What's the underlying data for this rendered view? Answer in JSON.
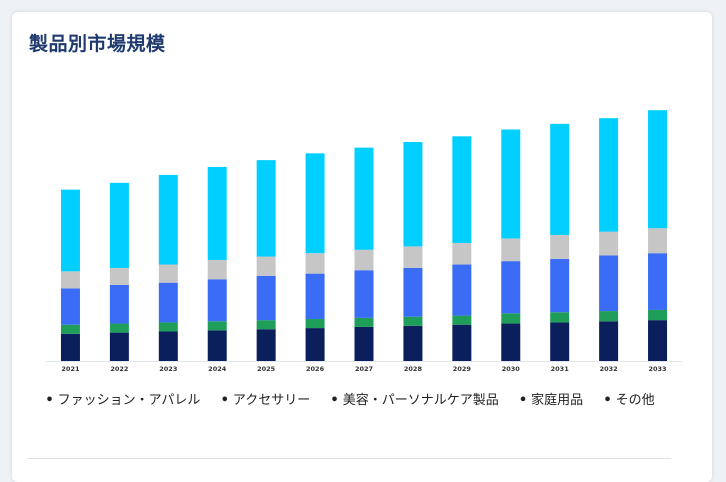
{
  "title": "製品別市場規模",
  "colors": {
    "fashion": "#00cfff",
    "accessories": "#c6c6c6",
    "beauty": "#3a6cf5",
    "household": "#1f9e5a",
    "other": "#0a1f5c"
  },
  "chart_data": {
    "type": "bar",
    "stacked": true,
    "categories": [
      "2021",
      "2022",
      "2023",
      "2024",
      "2025",
      "2026",
      "2027",
      "2028",
      "2029",
      "2030",
      "2031",
      "2032",
      "2033"
    ],
    "series": [
      {
        "name": "その他",
        "color_key": "other",
        "values": [
          24,
          25,
          26,
          27,
          28,
          29,
          30,
          31,
          32,
          33,
          34,
          35,
          36
        ]
      },
      {
        "name": "家庭用品",
        "color_key": "household",
        "values": [
          8,
          8,
          8,
          8,
          8,
          8,
          8,
          8,
          8,
          9,
          9,
          9,
          9
        ]
      },
      {
        "name": "美容・パーソナルケア製品",
        "color_key": "beauty",
        "values": [
          32,
          34,
          35,
          37,
          39,
          40,
          42,
          43,
          45,
          46,
          47,
          49,
          50
        ]
      },
      {
        "name": "アクセサリー",
        "color_key": "accessories",
        "values": [
          15,
          15,
          16,
          17,
          17,
          18,
          18,
          19,
          19,
          20,
          21,
          21,
          22
        ]
      },
      {
        "name": "ファッション・アパレル",
        "color_key": "fashion",
        "values": [
          72,
          75,
          79,
          82,
          85,
          88,
          90,
          92,
          94,
          96,
          98,
          100,
          104
        ]
      }
    ],
    "ylim": [
      0,
      230
    ],
    "grid": false,
    "legend_position": "bottom"
  },
  "legend": [
    {
      "label": "ファッション・アパレル"
    },
    {
      "label": "アクセサリー"
    },
    {
      "label": "美容・パーソナルケア製品"
    },
    {
      "label": "家庭用品"
    },
    {
      "label": "その他"
    }
  ]
}
